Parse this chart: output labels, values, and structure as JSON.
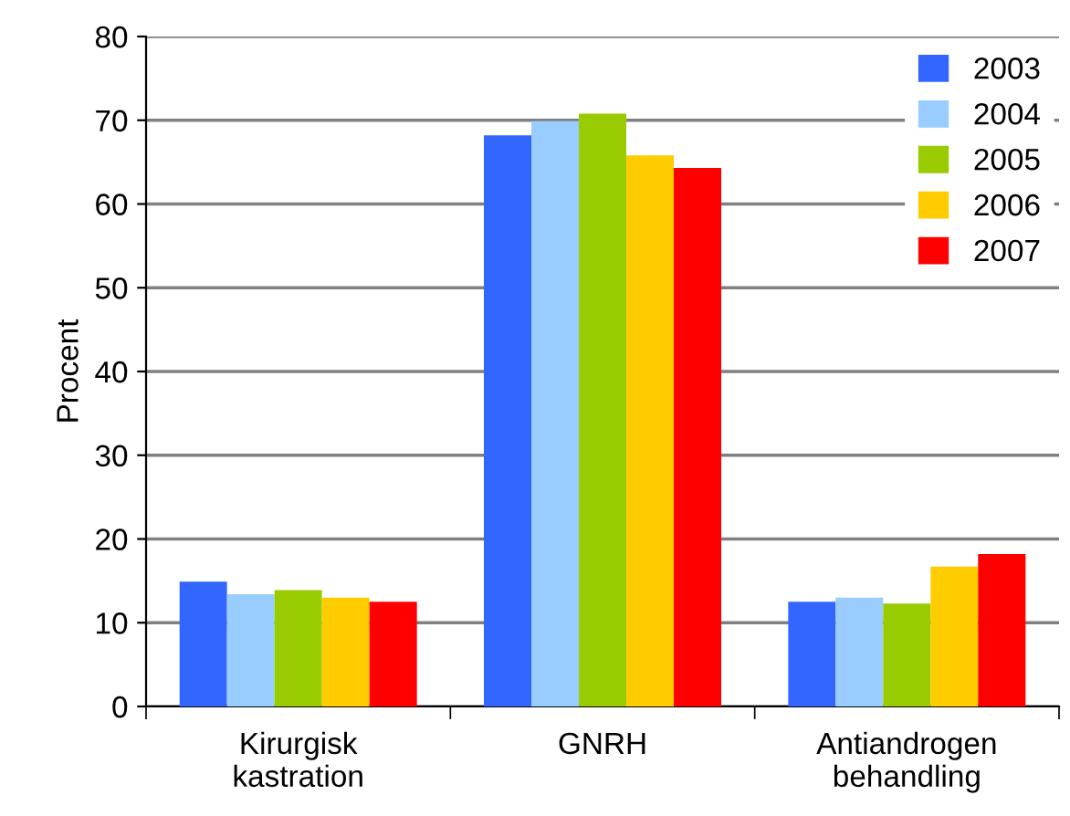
{
  "chart_data": {
    "type": "bar",
    "ylabel": "Procent",
    "categories": [
      "Kirurgisk\nkastration",
      "GNRH",
      "Antiandrogen\nbehandling"
    ],
    "series": [
      {
        "name": "2003",
        "color": "#3366ff",
        "values": [
          14.9,
          68.2,
          12.5
        ]
      },
      {
        "name": "2004",
        "color": "#99ccff",
        "values": [
          13.4,
          69.9,
          13.0
        ]
      },
      {
        "name": "2005",
        "color": "#99cc00",
        "values": [
          13.9,
          70.8,
          12.3
        ]
      },
      {
        "name": "2006",
        "color": "#ffcc00",
        "values": [
          13.0,
          65.8,
          16.7
        ]
      },
      {
        "name": "2007",
        "color": "#ff0000",
        "values": [
          12.5,
          64.3,
          18.2
        ]
      }
    ],
    "ylim": [
      0,
      80
    ],
    "yticks": [
      0,
      10,
      20,
      30,
      40,
      50,
      60,
      70,
      80
    ],
    "grid": "y",
    "legend": "top right"
  }
}
